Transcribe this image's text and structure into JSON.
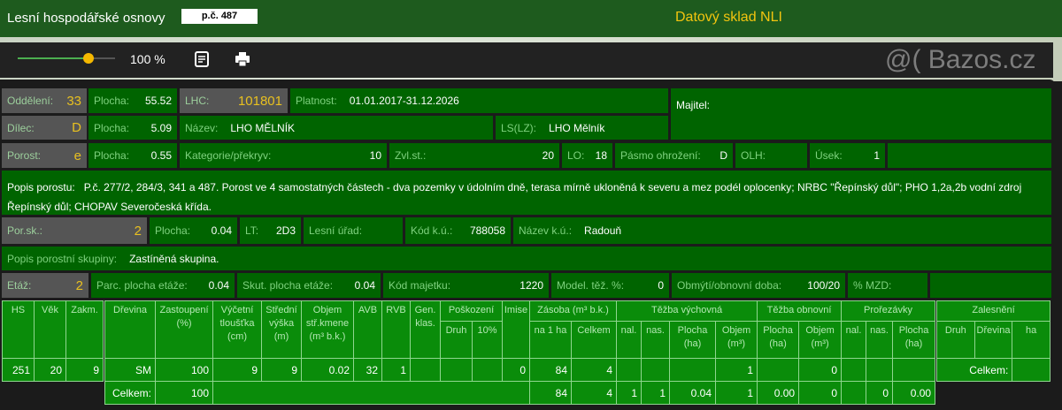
{
  "header": {
    "title": "Lesní hospodářské osnovy",
    "parcel": "p.č. 487",
    "app_name": "Datový sklad NLI"
  },
  "toolbar": {
    "zoom_value": "100 %",
    "zoom_fraction": 0.75,
    "notes_icon": "notes-icon",
    "print_icon": "print-icon"
  },
  "colors": {
    "header": "#1e5b1e",
    "cell": "#006400",
    "table": "#0a8c0a",
    "label": "#7fd27f",
    "highlight": "#e8c020",
    "accent": "#f5b800"
  },
  "info": {
    "oddeleni": {
      "label": "Oddělení:",
      "value": "33"
    },
    "plocha1": {
      "label": "Plocha:",
      "value": "55.52"
    },
    "lhc": {
      "label": "LHC:",
      "value": "101801"
    },
    "platnost": {
      "label": "Platnost:",
      "value": "01.01.2017-31.12.2026"
    },
    "majitel": {
      "label": "Majitel:",
      "value": ""
    },
    "dilec": {
      "label": "Dílec:",
      "value": "D"
    },
    "plocha2": {
      "label": "Plocha:",
      "value": "5.09"
    },
    "nazev": {
      "label": "Název:",
      "value": "LHO MĚLNÍK"
    },
    "ls": {
      "label": "LS(LZ):",
      "value": "LHO Mělník"
    },
    "porost": {
      "label": "Porost:",
      "value": "e"
    },
    "plocha3": {
      "label": "Plocha:",
      "value": "0.55"
    },
    "kategorie": {
      "label": "Kategorie/překryv:",
      "value": "10"
    },
    "zvlst": {
      "label": "Zvl.st.:",
      "value": "20"
    },
    "lo": {
      "label": "LO:",
      "value": "18"
    },
    "pasmo": {
      "label": "Pásmo ohrožení:",
      "value": "D"
    },
    "olh": {
      "label": "OLH:",
      "value": ""
    },
    "usek": {
      "label": "Úsek:",
      "value": "1"
    },
    "popis_porostu": {
      "label": "Popis porostu:",
      "value": "P.č. 277/2, 284/3, 341 a 487. Porost ve 4 samostatných částech - dva pozemky v údolním dně, terasa mírně ukloněná k severu a mez podél oplocenky; NRBC \"Řepínský důl\"; PHO 1,2a,2b vodní zdroj Řepínský důl; CHOPAV Severočeská křída."
    },
    "porsk": {
      "label": "Por.sk.:",
      "value": "2"
    },
    "plocha4": {
      "label": "Plocha:",
      "value": "0.04"
    },
    "lt": {
      "label": "LT:",
      "value": "2D3"
    },
    "lesni_urad": {
      "label": "Lesní úřad:",
      "value": ""
    },
    "kod_ku": {
      "label": "Kód k.ú.:",
      "value": "788058"
    },
    "nazev_ku": {
      "label": "Název k.ú.:",
      "value": "Radouň"
    },
    "popis_skupiny": {
      "label": "Popis porostní skupiny:",
      "value": "Zastíněná skupina."
    },
    "etaz": {
      "label": "Etáž:",
      "value": "2"
    },
    "parc_plocha": {
      "label": "Parc. plocha etáže:",
      "value": "0.04"
    },
    "skut_plocha": {
      "label": "Skut. plocha etáže:",
      "value": "0.04"
    },
    "kod_majetku": {
      "label": "Kód majetku:",
      "value": "1220"
    },
    "model_tez": {
      "label": "Model. těž. %:",
      "value": "0"
    },
    "obmyti": {
      "label": "Obmýtí/obnovní doba:",
      "value": "100/20"
    },
    "mzd": {
      "label": "% MZD:",
      "value": ""
    }
  },
  "table_stand": {
    "headers": [
      "HS",
      "Věk",
      "Zakm."
    ],
    "row": [
      "251",
      "20",
      "9"
    ]
  },
  "table_species": {
    "group_headers": {
      "poskozeni": "Poškození",
      "zasoba": "Zásoba (m³ b.k.)",
      "tezba_vych": "Těžba výchovná",
      "tezba_obn": "Těžba obnovní",
      "prorezavky": "Prořezávky"
    },
    "headers": [
      "Dřevina",
      "Zastoupení (%)",
      "Výčetní tloušťka (cm)",
      "Střední výška (m)",
      "Objem stř.kmene (m³ b.k.)",
      "AVB",
      "RVB",
      "Gen. klas.",
      "Druh",
      "10%",
      "Imise",
      "na 1 ha",
      "Celkem",
      "nal.",
      "nas.",
      "Plocha (ha)",
      "Objem (m³)",
      "Plocha (ha)",
      "Objem (m³)",
      "nal.",
      "nas.",
      "Plocha (ha)"
    ],
    "rows": [
      [
        "SM",
        "100",
        "9",
        "9",
        "0.02",
        "32",
        "1",
        "",
        "",
        "",
        "0",
        "84",
        "4",
        "",
        "",
        "",
        "1",
        "",
        "0",
        "",
        "",
        ""
      ]
    ],
    "total": {
      "label": "Celkem:",
      "zastoupeni": "100",
      "values": [
        "84",
        "4",
        "1",
        "1",
        "0.04",
        "1",
        "0.00",
        "0",
        "",
        "0",
        "0.00"
      ]
    }
  },
  "table_afforestation": {
    "title": "Zalesnění",
    "headers": [
      "Druh",
      "Dřevina",
      "ha"
    ],
    "total_label": "Celkem:",
    "total_value": ""
  },
  "watermark": "@( Bazos.cz"
}
